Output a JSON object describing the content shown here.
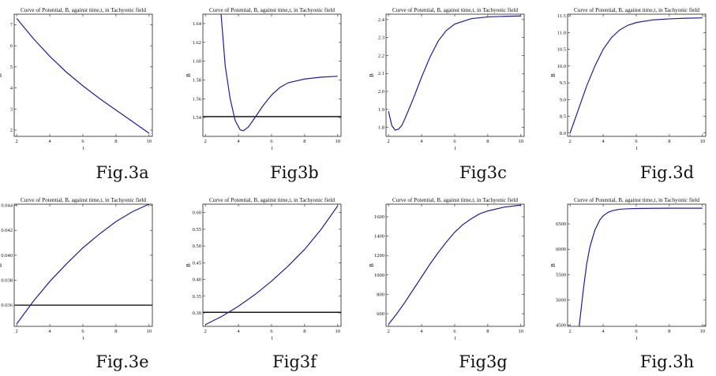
{
  "chart_data": [
    {
      "id": "3a",
      "type": "line",
      "title": "Curve of Potential, B, against time,t, in Tachyonic field",
      "xlabel": "t",
      "ylabel": "B",
      "caption": "Fig.3a",
      "xlim": [
        1.85,
        10.2
      ],
      "ylim": [
        1.7,
        7.5
      ],
      "xticks": [
        2,
        4,
        6,
        8,
        10
      ],
      "yticks": [
        2,
        3,
        4,
        5,
        6,
        7
      ],
      "ytick_labels": [
        "2",
        "3",
        "4",
        "5",
        "6",
        "7"
      ],
      "x": [
        2,
        3,
        4,
        5,
        6,
        7,
        8,
        9,
        10
      ],
      "y": [
        7.3,
        6.35,
        5.5,
        4.75,
        4.1,
        3.5,
        2.95,
        2.4,
        1.85
      ]
    },
    {
      "id": "3b",
      "type": "line",
      "title": "Curve of Potential, B, against time,t, in Tachyonic field",
      "xlabel": "t",
      "ylabel": "B",
      "caption": "Fig3b",
      "xlim": [
        1.85,
        10.2
      ],
      "ylim": [
        1.52,
        1.65
      ],
      "xticks": [
        2,
        4,
        6,
        8,
        10
      ],
      "yticks": [
        1.54,
        1.56,
        1.58,
        1.6,
        1.62,
        1.64
      ],
      "ytick_labels": [
        "1.54",
        "1.56",
        "1.58",
        "1.60",
        "1.62",
        "1.64"
      ],
      "x": [
        2.95,
        3.2,
        3.5,
        3.8,
        4.1,
        4.3,
        4.6,
        5.0,
        5.5,
        6.0,
        6.5,
        7.0,
        8.0,
        9.0,
        10.0
      ],
      "y": [
        1.65,
        1.595,
        1.56,
        1.537,
        1.527,
        1.526,
        1.53,
        1.54,
        1.553,
        1.564,
        1.572,
        1.577,
        1.581,
        1.583,
        1.584
      ],
      "hline": 1.541
    },
    {
      "id": "3c",
      "type": "line",
      "title": "Curve of Potential, B, against time,t, in Tachyonic field",
      "xlabel": "t",
      "ylabel": "B",
      "caption": "Fig3c",
      "xlim": [
        1.85,
        10.2
      ],
      "ylim": [
        1.75,
        2.43
      ],
      "xticks": [
        2,
        4,
        6,
        8,
        10
      ],
      "yticks": [
        1.8,
        1.9,
        2.0,
        2.1,
        2.2,
        2.3,
        2.4
      ],
      "ytick_labels": [
        "1.8",
        "1.9",
        "2.0",
        "2.1",
        "2.2",
        "2.3",
        "2.4"
      ],
      "x": [
        2.0,
        2.2,
        2.4,
        2.6,
        2.8,
        3.0,
        3.5,
        4.0,
        4.5,
        5.0,
        5.5,
        6.0,
        7.0,
        8.0,
        9.0,
        10.0
      ],
      "y": [
        1.89,
        1.81,
        1.785,
        1.79,
        1.81,
        1.85,
        1.96,
        2.08,
        2.19,
        2.28,
        2.34,
        2.375,
        2.405,
        2.415,
        2.418,
        2.42
      ]
    },
    {
      "id": "3d",
      "type": "line",
      "title": "Curve of Potential, B, against time,t, in Tachyonic field",
      "xlabel": "t",
      "ylabel": "B",
      "caption": "Fig.3d",
      "xlim": [
        1.85,
        10.2
      ],
      "ylim": [
        7.9,
        11.55
      ],
      "xticks": [
        2,
        4,
        6,
        8,
        10
      ],
      "yticks": [
        8.0,
        8.5,
        9.0,
        9.5,
        10.0,
        10.5,
        11.0,
        11.5
      ],
      "ytick_labels": [
        "8.0",
        "8.5",
        "9.0",
        "9.5",
        "10.0",
        "10.5",
        "11.0",
        "11.5"
      ],
      "x": [
        2.0,
        2.5,
        3.0,
        3.5,
        4.0,
        4.5,
        5.0,
        5.5,
        6.0,
        7.0,
        8.0,
        9.0,
        10.0
      ],
      "y": [
        8.0,
        8.7,
        9.4,
        10.0,
        10.5,
        10.85,
        11.08,
        11.22,
        11.3,
        11.38,
        11.41,
        11.43,
        11.44
      ]
    },
    {
      "id": "3e",
      "type": "line",
      "title": "Curve of Potential, B, against time,t, in Tachyonic field",
      "xlabel": "t",
      "ylabel": "B",
      "caption": "Fig.3e",
      "xlim": [
        1.85,
        10.2
      ],
      "ylim": [
        0.0343,
        0.0441
      ],
      "xticks": [
        2,
        4,
        6,
        8,
        10
      ],
      "yticks": [
        0.036,
        0.038,
        0.04,
        0.042,
        0.044
      ],
      "ytick_labels": [
        "0.036",
        "0.038",
        "0.040",
        "0.042",
        "0.044"
      ],
      "x": [
        2,
        3,
        4,
        5,
        6,
        7,
        8,
        9,
        10
      ],
      "y": [
        0.0345,
        0.0363,
        0.0379,
        0.0393,
        0.0406,
        0.0417,
        0.0427,
        0.0435,
        0.0441
      ],
      "hline": 0.036
    },
    {
      "id": "3f",
      "type": "line",
      "title": "Curve of Potential, B, against time,t, in Tachyonic field",
      "xlabel": "t",
      "ylabel": "B",
      "caption": "Fig3f",
      "xlim": [
        1.85,
        10.2
      ],
      "ylim": [
        0.26,
        0.625
      ],
      "xticks": [
        2,
        4,
        6,
        8,
        10
      ],
      "yticks": [
        0.3,
        0.35,
        0.4,
        0.45,
        0.5,
        0.55,
        0.6
      ],
      "ytick_labels": [
        "0.30",
        "0.35",
        "0.40",
        "0.45",
        "0.50",
        "0.55",
        "0.60"
      ],
      "x": [
        2,
        3,
        4,
        5,
        6,
        7,
        8,
        9,
        10
      ],
      "y": [
        0.265,
        0.29,
        0.32,
        0.355,
        0.395,
        0.44,
        0.49,
        0.55,
        0.62
      ],
      "hline": 0.302
    },
    {
      "id": "3g",
      "type": "line",
      "title": "Curve of Potential, B, against time,t, in Tachyonic field",
      "xlabel": "t",
      "ylabel": "B",
      "caption": "Fig3g",
      "xlim": [
        1.85,
        10.2
      ],
      "ylim": [
        470,
        1730
      ],
      "xticks": [
        2,
        4,
        6,
        8,
        10
      ],
      "yticks": [
        600,
        800,
        1000,
        1200,
        1400,
        1600
      ],
      "ytick_labels": [
        "600",
        "800",
        "1000",
        "1200",
        "1400",
        "1600"
      ],
      "x": [
        2.0,
        2.5,
        3.0,
        3.5,
        4.0,
        4.5,
        5.0,
        5.5,
        6.0,
        6.5,
        7.0,
        7.5,
        8.0,
        9.0,
        10.0
      ],
      "y": [
        490,
        600,
        720,
        850,
        980,
        1110,
        1230,
        1340,
        1440,
        1520,
        1580,
        1630,
        1660,
        1700,
        1720
      ]
    },
    {
      "id": "3h",
      "type": "line",
      "title": "Curve of Potential, B, against time,t, in Tachyonic field",
      "xlabel": "t",
      "ylabel": "B",
      "caption": "Fig.3h",
      "xlim": [
        1.85,
        10.2
      ],
      "ylim": [
        4480,
        6890
      ],
      "xticks": [
        2,
        4,
        6,
        8,
        10
      ],
      "yticks": [
        4500,
        5000,
        5500,
        6000,
        6500
      ],
      "ytick_labels": [
        "4500",
        "5000",
        "5500",
        "6000",
        "6500"
      ],
      "x": [
        2.55,
        2.8,
        3.0,
        3.2,
        3.5,
        3.8,
        4.0,
        4.3,
        4.6,
        5.0,
        5.5,
        6.0,
        7.0,
        8.0,
        10.0
      ],
      "y": [
        4480,
        5200,
        5700,
        6050,
        6380,
        6580,
        6660,
        6730,
        6765,
        6790,
        6800,
        6805,
        6808,
        6810,
        6810
      ]
    }
  ]
}
